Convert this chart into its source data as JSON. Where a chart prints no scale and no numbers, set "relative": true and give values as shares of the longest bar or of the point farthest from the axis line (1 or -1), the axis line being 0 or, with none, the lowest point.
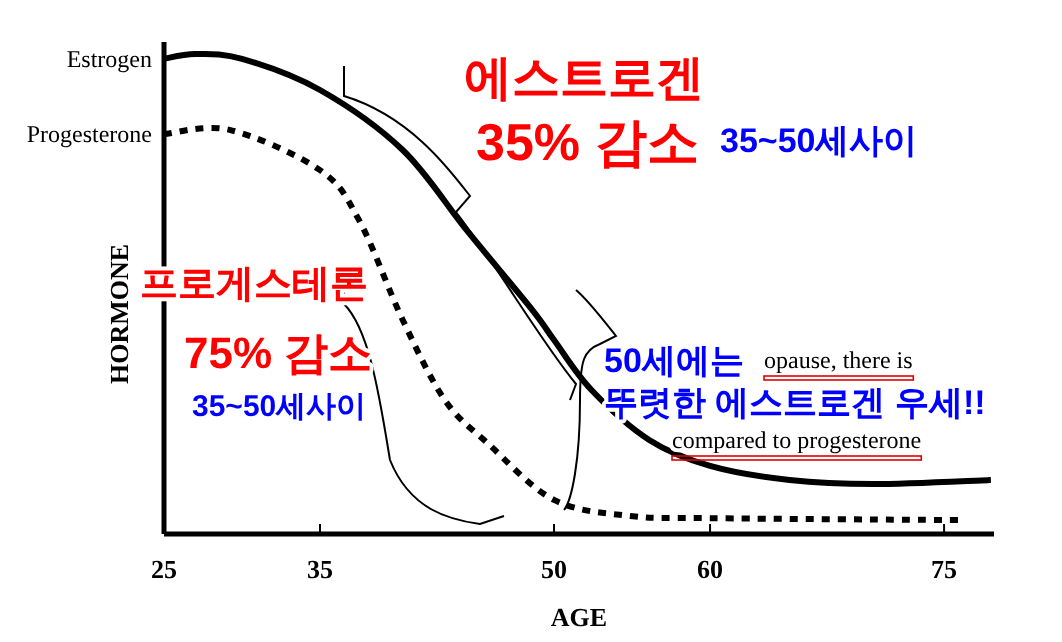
{
  "chart_data": {
    "type": "line",
    "relative": true,
    "xlabel": "AGE",
    "ylabel": "HORMONE",
    "xlim": [
      25,
      78.2
    ],
    "xticks": [
      25,
      35,
      50,
      60,
      75
    ],
    "grid": false,
    "marker": "none",
    "series": [
      {
        "name": "Estrogen",
        "color": "#000000",
        "line_style": "solid",
        "x": [
          25,
          27,
          30,
          35,
          40.3,
          44.4,
          48.6,
          50,
          52.4,
          56.1,
          60,
          65.1,
          70.5,
          78
        ],
        "values": [
          0.99,
          1.0,
          0.99,
          0.925,
          0.8,
          0.633,
          0.467,
          0.404,
          0.3,
          0.196,
          0.142,
          0.1125,
          0.104,
          0.1125
        ]
      },
      {
        "name": "Progesterone",
        "color": "#000000",
        "line_style": "dotted",
        "x": [
          25,
          29.2,
          35,
          37.5,
          40.3,
          43,
          45.8,
          50,
          54.9,
          60,
          76
        ],
        "values": [
          0.833,
          0.842,
          0.758,
          0.654,
          0.446,
          0.279,
          0.1875,
          0.071,
          0.0375,
          0.033,
          0.029
        ]
      }
    ],
    "annotations": [
      "에스트로겐",
      "35% 감소",
      "35~50세사이",
      "프로게스테론",
      "75% 감소",
      "35~50세사이",
      "50세에는",
      "opause, there is",
      "뚜렷한 에스트로겐 우세!!",
      "compared to progesterone"
    ]
  }
}
